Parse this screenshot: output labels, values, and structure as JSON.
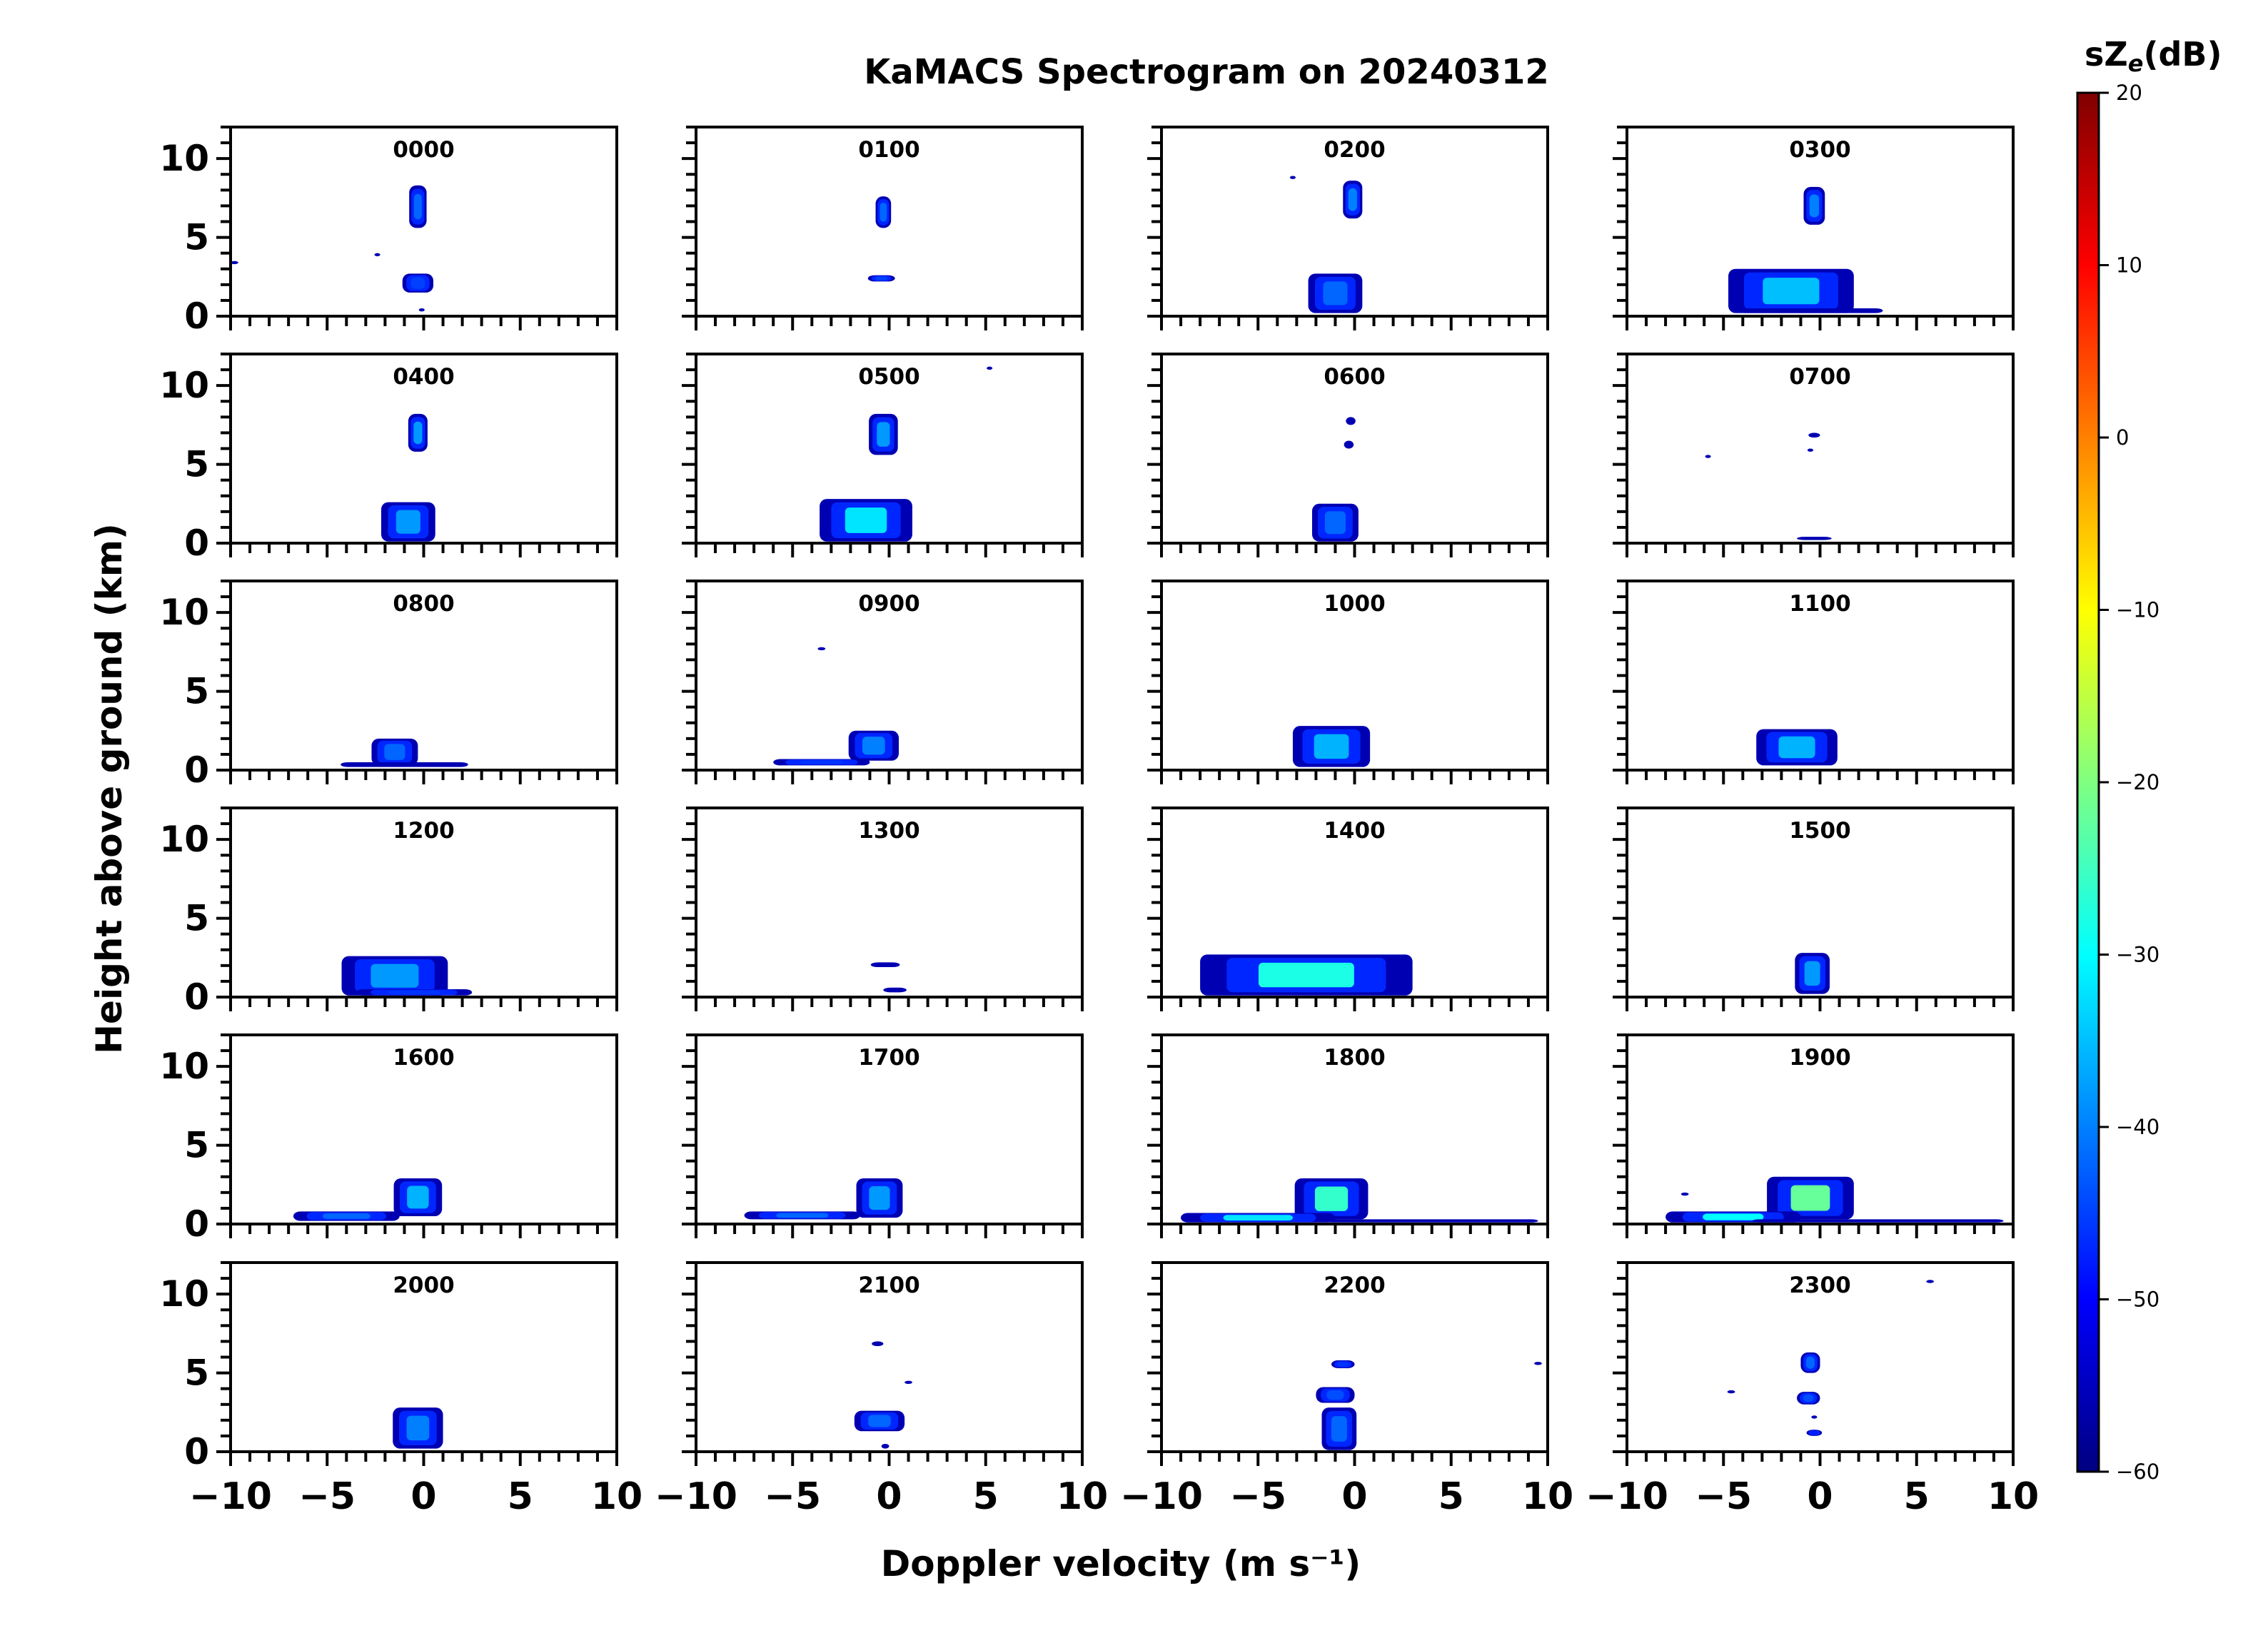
{
  "chart_data": {
    "type": "heatmap",
    "title": "KaMACS Spectrogram on 20240312",
    "xlabel": "Doppler velocity (m s⁻¹)",
    "ylabel": "Height above ground (km)",
    "xlim": [
      -10,
      10
    ],
    "ylim": [
      0,
      12
    ],
    "x_ticks": [
      "−10",
      "−5",
      "0",
      "5",
      "10"
    ],
    "y_ticks": [
      "0",
      "5",
      "10"
    ],
    "colorbar": {
      "label": "sZe(dB)",
      "range": [
        -60,
        20
      ],
      "ticks": [
        "20",
        "10",
        "0",
        "−10",
        "−20",
        "−30",
        "−40",
        "−50",
        "−60"
      ],
      "colors": [
        "#000080",
        "#0000ff",
        "#0080ff",
        "#00ffff",
        "#80ff80",
        "#ffff00",
        "#ff8000",
        "#ff0000",
        "#800000"
      ]
    },
    "panels": [
      {
        "label": "0000",
        "blobs": [
          {
            "v": -0.3,
            "h": [
              5.6,
              8.3
            ],
            "w": 0.9,
            "dbz": -42
          },
          {
            "v": -0.3,
            "h": [
              1.5,
              2.7
            ],
            "w": 1.6,
            "dbz": -45
          },
          {
            "v": -0.1,
            "h": [
              0.3,
              0.5
            ],
            "w": 0.3,
            "dbz": -50
          },
          {
            "v": -9.8,
            "h": [
              3.3,
              3.5
            ],
            "w": 0.4,
            "dbz": -52
          },
          {
            "v": -2.4,
            "h": [
              3.8,
              4.0
            ],
            "w": 0.3,
            "dbz": -52
          }
        ]
      },
      {
        "label": "0100",
        "blobs": [
          {
            "v": -0.3,
            "h": [
              5.6,
              7.6
            ],
            "w": 0.8,
            "dbz": -42
          },
          {
            "v": -0.4,
            "h": [
              2.2,
              2.6
            ],
            "w": 1.4,
            "dbz": -45
          }
        ]
      },
      {
        "label": "0200",
        "blobs": [
          {
            "v": -0.1,
            "h": [
              6.2,
              8.6
            ],
            "w": 1.0,
            "dbz": -40
          },
          {
            "v": -1.0,
            "h": [
              0.2,
              2.7
            ],
            "w": 2.8,
            "dbz": -42
          },
          {
            "v": -3.2,
            "h": [
              8.7,
              8.9
            ],
            "w": 0.3,
            "dbz": -52
          }
        ]
      },
      {
        "label": "0300",
        "blobs": [
          {
            "v": -0.3,
            "h": [
              5.8,
              8.2
            ],
            "w": 1.1,
            "dbz": -40
          },
          {
            "v": -1.5,
            "h": [
              0.2,
              3.0
            ],
            "w": 6.5,
            "dbz": -35
          },
          {
            "v": -0.5,
            "h": [
              0.2,
              0.5
            ],
            "w": 7.5,
            "dbz": -48
          }
        ]
      },
      {
        "label": "0400",
        "blobs": [
          {
            "v": -0.3,
            "h": [
              5.8,
              8.2
            ],
            "w": 1.0,
            "dbz": -38
          },
          {
            "v": -0.8,
            "h": [
              0.1,
              2.6
            ],
            "w": 2.8,
            "dbz": -38
          }
        ]
      },
      {
        "label": "0500",
        "blobs": [
          {
            "v": -0.3,
            "h": [
              5.6,
              8.2
            ],
            "w": 1.5,
            "dbz": -38
          },
          {
            "v": -1.2,
            "h": [
              0.1,
              2.8
            ],
            "w": 4.8,
            "dbz": -32
          },
          {
            "v": 5.2,
            "h": [
              11.0,
              11.2
            ],
            "w": 0.3,
            "dbz": -52
          }
        ]
      },
      {
        "label": "0600",
        "blobs": [
          {
            "v": -0.2,
            "h": [
              7.5,
              8.0
            ],
            "w": 0.5,
            "dbz": -45
          },
          {
            "v": -0.3,
            "h": [
              6.0,
              6.5
            ],
            "w": 0.5,
            "dbz": -45
          },
          {
            "v": -1.0,
            "h": [
              0.1,
              2.5
            ],
            "w": 2.4,
            "dbz": -42
          }
        ]
      },
      {
        "label": "0700",
        "blobs": [
          {
            "v": -0.3,
            "h": [
              6.7,
              7.0
            ],
            "w": 0.6,
            "dbz": -45
          },
          {
            "v": -0.5,
            "h": [
              5.8,
              6.0
            ],
            "w": 0.3,
            "dbz": -52
          },
          {
            "v": -5.8,
            "h": [
              5.4,
              5.6
            ],
            "w": 0.3,
            "dbz": -52
          },
          {
            "v": -0.3,
            "h": [
              0.2,
              0.4
            ],
            "w": 1.8,
            "dbz": -50
          }
        ]
      },
      {
        "label": "0800",
        "blobs": [
          {
            "v": -1.5,
            "h": [
              0.3,
              2.0
            ],
            "w": 2.4,
            "dbz": -42
          },
          {
            "v": -1.0,
            "h": [
              0.2,
              0.5
            ],
            "w": 6.6,
            "dbz": -48
          }
        ]
      },
      {
        "label": "0900",
        "blobs": [
          {
            "v": -0.8,
            "h": [
              0.6,
              2.5
            ],
            "w": 2.6,
            "dbz": -40
          },
          {
            "v": -3.5,
            "h": [
              0.3,
              0.7
            ],
            "w": 5.0,
            "dbz": -46
          },
          {
            "v": -3.5,
            "h": [
              7.6,
              7.8
            ],
            "w": 0.4,
            "dbz": -52
          }
        ]
      },
      {
        "label": "1000",
        "blobs": [
          {
            "v": -1.2,
            "h": [
              0.2,
              2.8
            ],
            "w": 4.0,
            "dbz": -36
          }
        ]
      },
      {
        "label": "1100",
        "blobs": [
          {
            "v": -1.2,
            "h": [
              0.3,
              2.6
            ],
            "w": 4.2,
            "dbz": -36
          }
        ]
      },
      {
        "label": "1200",
        "blobs": [
          {
            "v": -1.5,
            "h": [
              0.1,
              2.6
            ],
            "w": 5.5,
            "dbz": -38
          },
          {
            "v": -0.5,
            "h": [
              0.1,
              0.5
            ],
            "w": 6.0,
            "dbz": -46
          }
        ]
      },
      {
        "label": "1300",
        "blobs": [
          {
            "v": -0.2,
            "h": [
              1.9,
              2.2
            ],
            "w": 1.5,
            "dbz": -45
          },
          {
            "v": 0.3,
            "h": [
              0.3,
              0.6
            ],
            "w": 1.2,
            "dbz": -48
          }
        ]
      },
      {
        "label": "1400",
        "blobs": [
          {
            "v": -2.5,
            "h": [
              0.1,
              2.7
            ],
            "w": 11.0,
            "dbz": -28
          }
        ]
      },
      {
        "label": "1500",
        "blobs": [
          {
            "v": -0.4,
            "h": [
              0.2,
              2.8
            ],
            "w": 1.8,
            "dbz": -38
          }
        ]
      },
      {
        "label": "1600",
        "blobs": [
          {
            "v": -0.3,
            "h": [
              0.5,
              2.9
            ],
            "w": 2.5,
            "dbz": -36
          },
          {
            "v": -4.0,
            "h": [
              0.2,
              0.8
            ],
            "w": 5.5,
            "dbz": -42
          }
        ]
      },
      {
        "label": "1700",
        "blobs": [
          {
            "v": -0.5,
            "h": [
              0.4,
              2.9
            ],
            "w": 2.4,
            "dbz": -38
          },
          {
            "v": -4.5,
            "h": [
              0.3,
              0.8
            ],
            "w": 6.0,
            "dbz": -42
          }
        ]
      },
      {
        "label": "1800",
        "blobs": [
          {
            "v": -1.2,
            "h": [
              0.3,
              2.9
            ],
            "w": 3.8,
            "dbz": -26
          },
          {
            "v": -5.0,
            "h": [
              0.1,
              0.7
            ],
            "w": 8.0,
            "dbz": -32
          },
          {
            "v": 4.0,
            "h": [
              0.1,
              0.3
            ],
            "w": 11.0,
            "dbz": -52
          }
        ]
      },
      {
        "label": "1900",
        "blobs": [
          {
            "v": -0.5,
            "h": [
              0.3,
              3.0
            ],
            "w": 4.5,
            "dbz": -22
          },
          {
            "v": -4.5,
            "h": [
              0.1,
              0.8
            ],
            "w": 7.0,
            "dbz": -30
          },
          {
            "v": 3.0,
            "h": [
              0.1,
              0.3
            ],
            "w": 13.0,
            "dbz": -52
          },
          {
            "v": -7.0,
            "h": [
              1.8,
              2.0
            ],
            "w": 0.4,
            "dbz": -52
          }
        ]
      },
      {
        "label": "2000",
        "blobs": [
          {
            "v": -0.3,
            "h": [
              0.2,
              2.8
            ],
            "w": 2.6,
            "dbz": -40
          }
        ]
      },
      {
        "label": "2100",
        "blobs": [
          {
            "v": -0.5,
            "h": [
              1.3,
              2.6
            ],
            "w": 2.6,
            "dbz": -42
          },
          {
            "v": -0.6,
            "h": [
              6.7,
              7.0
            ],
            "w": 0.6,
            "dbz": -48
          },
          {
            "v": 1.0,
            "h": [
              4.3,
              4.5
            ],
            "w": 0.4,
            "dbz": -52
          },
          {
            "v": -0.2,
            "h": [
              0.2,
              0.5
            ],
            "w": 0.4,
            "dbz": -50
          }
        ]
      },
      {
        "label": "2200",
        "blobs": [
          {
            "v": -0.8,
            "h": [
              0.1,
              2.8
            ],
            "w": 1.8,
            "dbz": -42
          },
          {
            "v": -1.0,
            "h": [
              3.1,
              4.1
            ],
            "w": 2.0,
            "dbz": -44
          },
          {
            "v": -0.6,
            "h": [
              5.3,
              5.8
            ],
            "w": 1.2,
            "dbz": -46
          },
          {
            "v": 9.5,
            "h": [
              5.5,
              5.7
            ],
            "w": 0.4,
            "dbz": -52
          }
        ]
      },
      {
        "label": "2300",
        "blobs": [
          {
            "v": -0.5,
            "h": [
              5.0,
              6.3
            ],
            "w": 1.0,
            "dbz": -42
          },
          {
            "v": -0.6,
            "h": [
              3.0,
              3.8
            ],
            "w": 1.2,
            "dbz": -44
          },
          {
            "v": -0.3,
            "h": [
              1.0,
              1.4
            ],
            "w": 0.8,
            "dbz": -48
          },
          {
            "v": -0.3,
            "h": [
              2.1,
              2.3
            ],
            "w": 0.3,
            "dbz": -50
          },
          {
            "v": 5.7,
            "h": [
              10.7,
              10.9
            ],
            "w": 0.4,
            "dbz": -52
          },
          {
            "v": -4.6,
            "h": [
              3.7,
              3.9
            ],
            "w": 0.4,
            "dbz": -52
          }
        ]
      }
    ]
  }
}
